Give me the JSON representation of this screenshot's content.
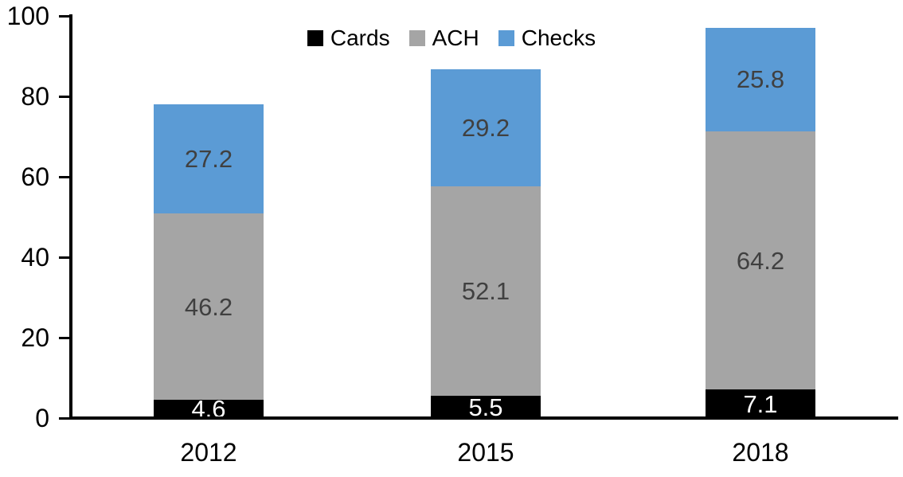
{
  "chart_data": {
    "type": "bar",
    "subtype": "stacked-column",
    "title": "",
    "categories": [
      "2012",
      "2015",
      "2018"
    ],
    "series": [
      {
        "name": "Cards",
        "color": "#000000",
        "label_color": "#ffffff",
        "values": [
          4.6,
          5.5,
          7.1
        ]
      },
      {
        "name": "ACH",
        "color": "#a5a5a5",
        "label_color": "#404040",
        "values": [
          46.2,
          52.1,
          64.2
        ]
      },
      {
        "name": "Checks",
        "color": "#5b9bd5",
        "label_color": "#404040",
        "values": [
          27.2,
          29.2,
          25.8
        ]
      }
    ],
    "data_labels_visible": true,
    "y_axis": {
      "min": 0,
      "max": 100,
      "tick_interval": 20,
      "tick_labels": [
        "0",
        "20",
        "40",
        "60",
        "80",
        "100"
      ]
    },
    "x_axis": {
      "tick_labels": [
        "2012",
        "2015",
        "2018"
      ]
    },
    "legend": {
      "position": "top",
      "entries": [
        "Cards",
        "ACH",
        "Checks"
      ]
    },
    "grid": false,
    "axis_color": "#000000",
    "background_color": "#ffffff"
  }
}
